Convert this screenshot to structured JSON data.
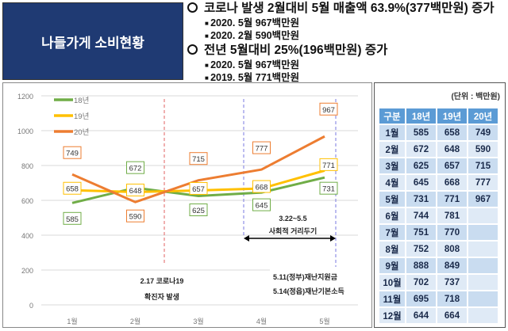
{
  "title": "나들가게 소비현황",
  "summary": [
    {
      "level": 1,
      "text": "코로나 발생 2월대비 5월 매출액 63.9%(377백만원) 증가"
    },
    {
      "level": 2,
      "text": "2020. 5월 967백만원"
    },
    {
      "level": 2,
      "text": "2020. 2월 590백만원"
    },
    {
      "level": 1,
      "text": "전년 5월대비 25%(196백만원) 증가"
    },
    {
      "level": 2,
      "text": "2020. 5월 967백만원"
    },
    {
      "level": 2,
      "text": "2019. 5월 771백만원"
    }
  ],
  "chart_data": {
    "type": "line",
    "categories": [
      "1월",
      "2월",
      "3월",
      "4월",
      "5월"
    ],
    "ylim": [
      0,
      1200
    ],
    "yticks": [
      0,
      200,
      400,
      600,
      800,
      1000,
      1200
    ],
    "grid": true,
    "legend": "top-left",
    "series": [
      {
        "name": "18년",
        "color": "#70ad47",
        "values": [
          585,
          672,
          625,
          645,
          731
        ]
      },
      {
        "name": "19년",
        "color": "#ffc000",
        "values": [
          658,
          648,
          657,
          668,
          771
        ]
      },
      {
        "name": "20년",
        "color": "#ed7d31",
        "values": [
          749,
          590,
          715,
          777,
          967
        ]
      }
    ],
    "annotations": {
      "covid": {
        "text1": "2.17 코로나19",
        "text2": "확진자 발생"
      },
      "distancing": {
        "text1": "3.22~5.5",
        "text2": "사회적 거리두기"
      },
      "relief": {
        "text1": "5.11(정부)재난지원금",
        "text2": "5.14(정읍)재난기본소득"
      }
    }
  },
  "table": {
    "unit": "(단위 : 백만원)",
    "headers": [
      "구분",
      "18년",
      "19년",
      "20년"
    ],
    "rows": [
      [
        "1월",
        "585",
        "658",
        "749"
      ],
      [
        "2월",
        "672",
        "648",
        "590"
      ],
      [
        "3월",
        "625",
        "657",
        "715"
      ],
      [
        "4월",
        "645",
        "668",
        "777"
      ],
      [
        "5월",
        "731",
        "771",
        "967"
      ],
      [
        "6월",
        "744",
        "781",
        ""
      ],
      [
        "7월",
        "751",
        "770",
        ""
      ],
      [
        "8월",
        "752",
        "808",
        ""
      ],
      [
        "9월",
        "888",
        "849",
        ""
      ],
      [
        "10월",
        "702",
        "737",
        ""
      ],
      [
        "11월",
        "695",
        "718",
        ""
      ],
      [
        "12월",
        "644",
        "664",
        ""
      ]
    ]
  }
}
